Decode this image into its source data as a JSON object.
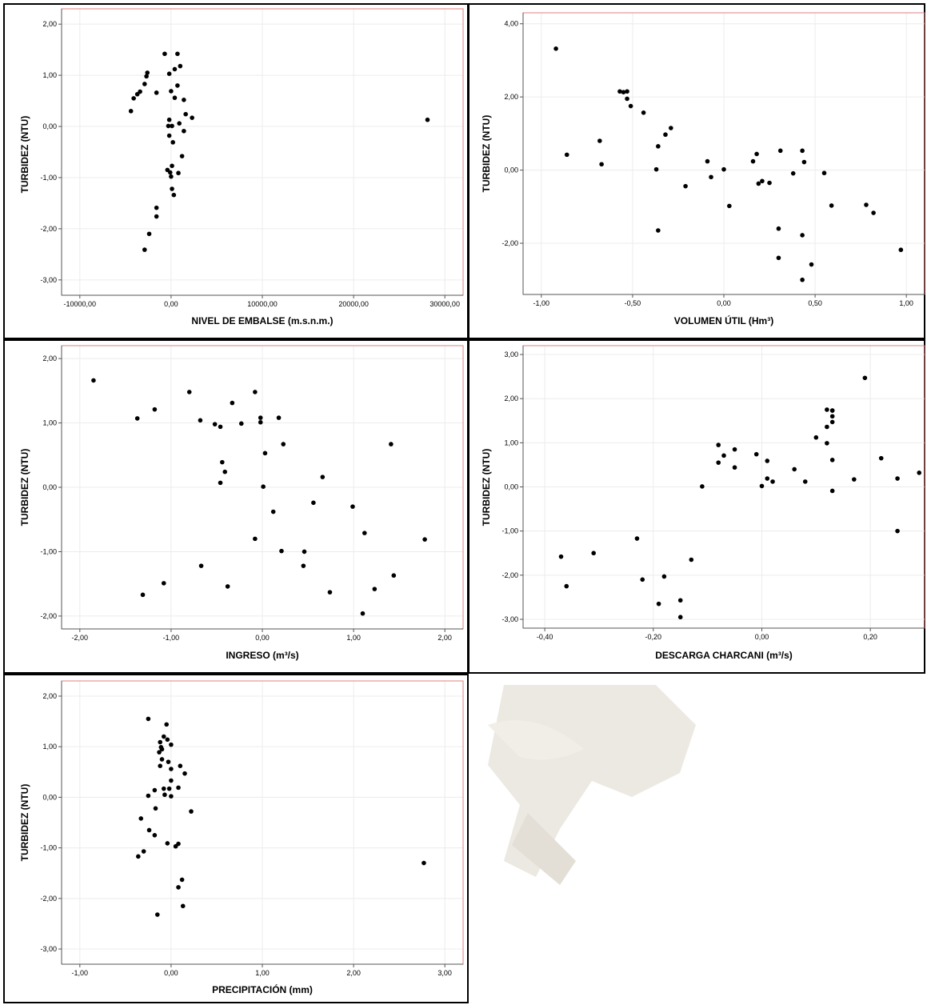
{
  "colors": {
    "frame": "#e08080",
    "grid": "#ececec",
    "point": "#000000",
    "border": "#000000",
    "watermark": "#e9e6de"
  },
  "chart_data": [
    {
      "type": "scatter",
      "xlabel": "NIVEL DE EMBALSE (m.s.n.m.)",
      "ylabel": "TURBIDEZ (NTU)",
      "xlim": [
        -12000,
        32000
      ],
      "ylim": [
        -3.3,
        2.3
      ],
      "xticks": [
        -10000,
        0,
        10000,
        20000,
        30000
      ],
      "xtick_labels": [
        "-10000,00",
        "0,00",
        "10000,00",
        "20000,00",
        "30000,00"
      ],
      "yticks": [
        -3,
        -2,
        -1,
        0,
        1,
        2
      ],
      "ytick_labels": [
        "-3,00",
        "-2,00",
        "-1,00",
        "0,00",
        "1,00",
        "2,00"
      ],
      "points": [
        [
          -700,
          1.42
        ],
        [
          700,
          1.42
        ],
        [
          1000,
          1.18
        ],
        [
          400,
          1.12
        ],
        [
          -200,
          1.03
        ],
        [
          -2600,
          1.05
        ],
        [
          -2700,
          0.98
        ],
        [
          -2900,
          0.83
        ],
        [
          -3400,
          0.68
        ],
        [
          -3700,
          0.63
        ],
        [
          -4100,
          0.55
        ],
        [
          -4400,
          0.3
        ],
        [
          -1600,
          0.66
        ],
        [
          0,
          0.69
        ],
        [
          700,
          0.8
        ],
        [
          1400,
          0.52
        ],
        [
          400,
          0.56
        ],
        [
          1600,
          0.24
        ],
        [
          2300,
          0.17
        ],
        [
          -200,
          0.13
        ],
        [
          100,
          0.01
        ],
        [
          -300,
          0.01
        ],
        [
          900,
          0.06
        ],
        [
          1400,
          -0.09
        ],
        [
          -200,
          -0.18
        ],
        [
          200,
          -0.31
        ],
        [
          1200,
          -0.58
        ],
        [
          -400,
          -0.85
        ],
        [
          100,
          -0.77
        ],
        [
          -100,
          -0.9
        ],
        [
          800,
          -0.91
        ],
        [
          0,
          -0.98
        ],
        [
          100,
          -1.22
        ],
        [
          300,
          -1.34
        ],
        [
          -1600,
          -1.59
        ],
        [
          -1600,
          -1.76
        ],
        [
          -2400,
          -2.1
        ],
        [
          -2900,
          -2.41
        ],
        [
          28100,
          0.13
        ]
      ]
    },
    {
      "type": "scatter",
      "xlabel": "VOLUMEN ÚTIL (Hm³)",
      "ylabel": "TURBIDEZ (NTU)",
      "xlim": [
        -1.1,
        1.1
      ],
      "ylim": [
        -3.4,
        4.3
      ],
      "xticks": [
        -1,
        -0.5,
        0,
        0.5,
        1
      ],
      "xtick_labels": [
        "-1,00",
        "-0,50",
        "0,00",
        "0,50",
        "1,00"
      ],
      "yticks": [
        -2,
        0,
        2,
        4
      ],
      "ytick_labels": [
        "-2,00",
        "0,00",
        "2,00",
        "4,00"
      ],
      "points": [
        [
          -0.92,
          3.32
        ],
        [
          -0.86,
          0.42
        ],
        [
          -0.68,
          0.8
        ],
        [
          -0.67,
          0.16
        ],
        [
          -0.57,
          2.15
        ],
        [
          -0.55,
          2.13
        ],
        [
          -0.53,
          2.15
        ],
        [
          -0.53,
          1.95
        ],
        [
          -0.51,
          1.75
        ],
        [
          -0.44,
          1.57
        ],
        [
          -0.32,
          0.97
        ],
        [
          -0.29,
          1.15
        ],
        [
          -0.36,
          0.65
        ],
        [
          -0.37,
          0.02
        ],
        [
          -0.36,
          -1.65
        ],
        [
          -0.21,
          -0.44
        ],
        [
          -0.09,
          0.24
        ],
        [
          -0.07,
          -0.19
        ],
        [
          0.0,
          0.02
        ],
        [
          0.03,
          -0.98
        ],
        [
          0.16,
          0.24
        ],
        [
          0.18,
          0.44
        ],
        [
          0.19,
          -0.37
        ],
        [
          0.21,
          -0.3
        ],
        [
          0.25,
          -0.35
        ],
        [
          0.3,
          -1.6
        ],
        [
          0.31,
          0.53
        ],
        [
          0.3,
          -2.4
        ],
        [
          0.38,
          -0.09
        ],
        [
          0.43,
          0.53
        ],
        [
          0.44,
          0.22
        ],
        [
          0.43,
          -1.78
        ],
        [
          0.43,
          -3.0
        ],
        [
          0.48,
          -2.58
        ],
        [
          0.55,
          -0.08
        ],
        [
          0.59,
          -0.97
        ],
        [
          0.78,
          -0.95
        ],
        [
          0.82,
          -1.17
        ],
        [
          0.97,
          -2.18
        ]
      ]
    },
    {
      "type": "scatter",
      "xlabel": "INGRESO (m³/s)",
      "ylabel": "TURBIDEZ (NTU)",
      "xlim": [
        -2.2,
        2.2
      ],
      "ylim": [
        -2.2,
        2.2
      ],
      "xticks": [
        -2,
        -1,
        0,
        1,
        2
      ],
      "xtick_labels": [
        "-2,00",
        "-1,00",
        "0,00",
        "1,00",
        "2,00"
      ],
      "yticks": [
        -2,
        -1,
        0,
        1,
        2
      ],
      "ytick_labels": [
        "-2,00",
        "-1,00",
        "0,00",
        "1,00",
        "2,00"
      ],
      "points": [
        [
          -1.85,
          1.66
        ],
        [
          -1.37,
          1.07
        ],
        [
          -1.18,
          1.21
        ],
        [
          -0.8,
          1.48
        ],
        [
          -0.68,
          1.04
        ],
        [
          -0.52,
          0.98
        ],
        [
          -0.46,
          0.94
        ],
        [
          -0.33,
          1.31
        ],
        [
          -0.23,
          0.99
        ],
        [
          -0.08,
          1.48
        ],
        [
          -0.02,
          1.08
        ],
        [
          -0.02,
          1.01
        ],
        [
          0.18,
          1.08
        ],
        [
          0.23,
          0.67
        ],
        [
          0.03,
          0.53
        ],
        [
          -0.44,
          0.39
        ],
        [
          -0.41,
          0.24
        ],
        [
          -0.46,
          0.07
        ],
        [
          0.01,
          0.01
        ],
        [
          0.56,
          -0.24
        ],
        [
          0.66,
          0.16
        ],
        [
          0.12,
          -0.38
        ],
        [
          0.99,
          -0.3
        ],
        [
          1.12,
          -0.71
        ],
        [
          1.41,
          0.67
        ],
        [
          1.78,
          -0.81
        ],
        [
          -0.08,
          -0.8
        ],
        [
          0.21,
          -0.99
        ],
        [
          0.46,
          -1.0
        ],
        [
          0.45,
          -1.22
        ],
        [
          -0.67,
          -1.22
        ],
        [
          -0.38,
          -1.54
        ],
        [
          -1.08,
          -1.49
        ],
        [
          -1.31,
          -1.67
        ],
        [
          0.74,
          -1.63
        ],
        [
          1.23,
          -1.58
        ],
        [
          1.44,
          -1.37
        ],
        [
          1.1,
          -1.96
        ]
      ]
    },
    {
      "type": "scatter",
      "xlabel": "DESCARGA CHARCANI (m³/s)",
      "ylabel": "TURBIDEZ (NTU)",
      "xlim": [
        -0.44,
        0.3
      ],
      "ylim": [
        -3.2,
        3.2
      ],
      "xticks": [
        -0.4,
        -0.2,
        0,
        0.2
      ],
      "xtick_labels": [
        "-0,40",
        "-0,20",
        "0,00",
        "0,20"
      ],
      "yticks": [
        -3,
        -2,
        -1,
        0,
        1,
        2,
        3
      ],
      "ytick_labels": [
        "-3,00",
        "-2,00",
        "-1,00",
        "0,00",
        "1,00",
        "2,00",
        "3,00"
      ],
      "points": [
        [
          -0.37,
          -1.58
        ],
        [
          -0.36,
          -2.25
        ],
        [
          -0.31,
          -1.5
        ],
        [
          -0.23,
          -1.17
        ],
        [
          -0.22,
          -2.1
        ],
        [
          -0.19,
          -2.65
        ],
        [
          -0.18,
          -2.03
        ],
        [
          -0.15,
          -2.57
        ],
        [
          -0.15,
          -2.95
        ],
        [
          -0.13,
          -1.65
        ],
        [
          -0.11,
          0.01
        ],
        [
          -0.08,
          0.55
        ],
        [
          -0.08,
          0.95
        ],
        [
          -0.07,
          0.71
        ],
        [
          -0.05,
          0.85
        ],
        [
          -0.05,
          0.44
        ],
        [
          -0.01,
          0.74
        ],
        [
          0.01,
          0.59
        ],
        [
          0.01,
          0.19
        ],
        [
          0.02,
          0.12
        ],
        [
          0.0,
          0.02
        ],
        [
          0.06,
          0.4
        ],
        [
          0.08,
          0.12
        ],
        [
          0.1,
          1.12
        ],
        [
          0.12,
          1.75
        ],
        [
          0.13,
          1.73
        ],
        [
          0.13,
          1.73
        ],
        [
          0.13,
          1.6
        ],
        [
          0.12,
          1.36
        ],
        [
          0.13,
          1.47
        ],
        [
          0.12,
          0.99
        ],
        [
          0.13,
          0.61
        ],
        [
          0.13,
          -0.09
        ],
        [
          0.17,
          0.17
        ],
        [
          0.19,
          2.47
        ],
        [
          0.22,
          0.65
        ],
        [
          0.25,
          0.19
        ],
        [
          0.25,
          -1.0
        ],
        [
          0.29,
          0.32
        ]
      ]
    },
    {
      "type": "scatter",
      "xlabel": "PRECIPITACIÓN (mm)",
      "ylabel": "TURBIDEZ (NTU)",
      "xlim": [
        -1.2,
        3.2
      ],
      "ylim": [
        -3.3,
        2.3
      ],
      "xticks": [
        -1,
        0,
        1,
        2,
        3
      ],
      "xtick_labels": [
        "-1,00",
        "0,00",
        "1,00",
        "2,00",
        "3,00"
      ],
      "yticks": [
        -3,
        -2,
        -1,
        0,
        1,
        2
      ],
      "ytick_labels": [
        "-3,00",
        "-2,00",
        "-1,00",
        "0,00",
        "1,00",
        "2,00"
      ],
      "points": [
        [
          -0.25,
          1.55
        ],
        [
          -0.05,
          1.44
        ],
        [
          -0.08,
          1.2
        ],
        [
          -0.12,
          1.09
        ],
        [
          -0.04,
          1.14
        ],
        [
          0.0,
          1.04
        ],
        [
          -0.11,
          0.99
        ],
        [
          -0.13,
          0.89
        ],
        [
          -0.1,
          0.95
        ],
        [
          -0.1,
          0.75
        ],
        [
          -0.03,
          0.7
        ],
        [
          -0.12,
          0.62
        ],
        [
          0.1,
          0.62
        ],
        [
          0.0,
          0.56
        ],
        [
          0.15,
          0.47
        ],
        [
          0.0,
          0.33
        ],
        [
          -0.18,
          0.14
        ],
        [
          -0.08,
          0.17
        ],
        [
          -0.02,
          0.17
        ],
        [
          0.08,
          0.19
        ],
        [
          -0.25,
          0.03
        ],
        [
          -0.07,
          0.05
        ],
        [
          0.0,
          0.02
        ],
        [
          -0.17,
          -0.22
        ],
        [
          0.22,
          -0.28
        ],
        [
          -0.33,
          -0.42
        ],
        [
          -0.24,
          -0.65
        ],
        [
          -0.18,
          -0.75
        ],
        [
          -0.04,
          -0.91
        ],
        [
          0.08,
          -0.92
        ],
        [
          0.05,
          -0.97
        ],
        [
          -0.3,
          -1.07
        ],
        [
          -0.36,
          -1.17
        ],
        [
          2.77,
          -1.3
        ],
        [
          0.12,
          -1.63
        ],
        [
          0.08,
          -1.78
        ],
        [
          0.13,
          -2.15
        ],
        [
          -0.15,
          -2.32
        ]
      ]
    }
  ]
}
